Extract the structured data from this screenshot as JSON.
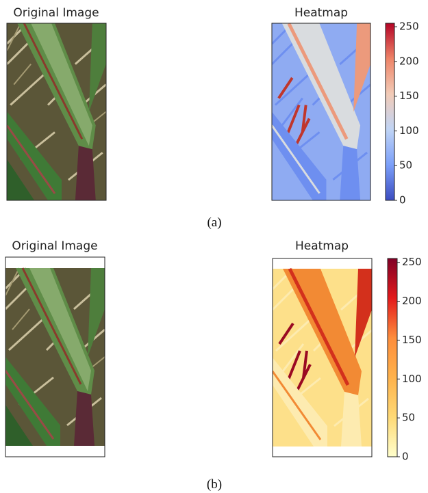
{
  "panels": [
    {
      "original_title": "Original Image",
      "heatmap_title": "Heatmap",
      "colorbar": {
        "lim": [
          0,
          255
        ],
        "ticks": [
          0,
          50,
          100,
          150,
          200,
          250
        ],
        "colors": [
          "#3b4cc0",
          "#7b9ff9",
          "#c0d4f5",
          "#f2cbb7",
          "#ee8468",
          "#b40426"
        ]
      },
      "caption": "(a)"
    },
    {
      "original_title": "Original Image",
      "heatmap_title": "Heatmap",
      "colorbar": {
        "lim": [
          0,
          255
        ],
        "ticks": [
          0,
          50,
          100,
          150,
          200,
          250
        ],
        "colors": [
          "#ffffcc",
          "#fed976",
          "#feb24c",
          "#fd8d3c",
          "#e31a1c",
          "#800026"
        ]
      },
      "caption": "(b)"
    }
  ]
}
